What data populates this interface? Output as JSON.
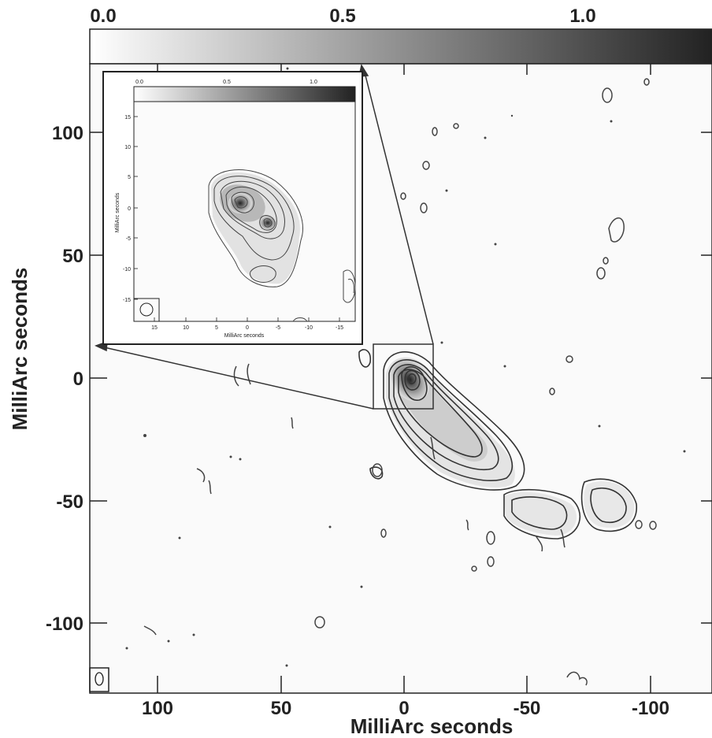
{
  "main": {
    "colorbar": {
      "ticks": [
        "0.0",
        "0.5",
        "1.0"
      ],
      "range": [
        0.0,
        1.2
      ]
    },
    "x_axis": {
      "title": "MilliArc seconds",
      "ticks": [
        "100",
        "50",
        "0",
        "-50",
        "-100"
      ],
      "range": [
        125,
        -125
      ]
    },
    "y_axis": {
      "title": "MilliArc seconds",
      "ticks": [
        "100",
        "50",
        "0",
        "-50",
        "-100"
      ],
      "range": [
        -128,
        128
      ]
    }
  },
  "inset": {
    "colorbar": {
      "ticks": [
        "0.0",
        "0.5",
        "1.0"
      ]
    },
    "x_axis": {
      "title": "MilliArc seconds",
      "ticks": [
        "15",
        "10",
        "5",
        "0",
        "-5",
        "-10",
        "-15"
      ],
      "range": [
        18,
        -18
      ]
    },
    "y_axis": {
      "title": "MilliArc seconds",
      "ticks": [
        "15",
        "10",
        "5",
        "0",
        "-5",
        "-10",
        "-15"
      ],
      "range": [
        -20,
        18
      ]
    }
  },
  "style": {
    "line_color": "#333333",
    "background": "#ffffff"
  }
}
